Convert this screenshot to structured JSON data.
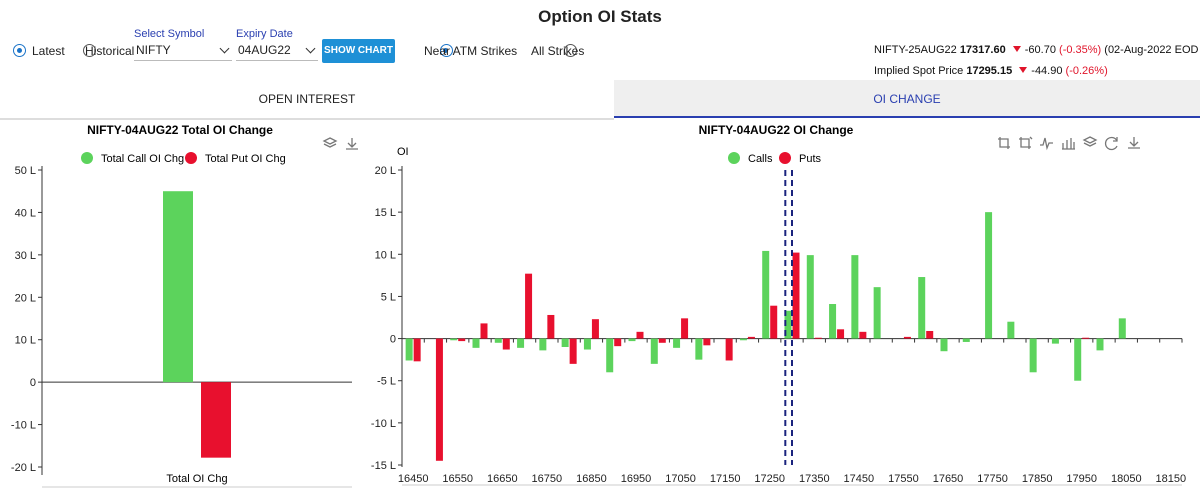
{
  "page_title": "Option OI Stats",
  "controls": {
    "mode_latest": "Latest",
    "mode_historical": "Historical",
    "symbol_label": "Select Symbol",
    "symbol_value": "NIFTY",
    "expiry_label": "Expiry Date",
    "expiry_value": "04AUG22",
    "show_chart": "SHOW CHART",
    "strikes_near": "Near ATM Strikes",
    "strikes_all": "All Strikes"
  },
  "info": {
    "fut_name": "NIFTY-25AUG22",
    "fut_price": "17317.60",
    "fut_change": "-60.70",
    "fut_pct": "(-0.35%)",
    "fut_date": "(02-Aug-2022 EOD )",
    "spot_label": "Implied Spot Price",
    "spot_price": "17295.15",
    "spot_change": "-44.90",
    "spot_pct": "(-0.26%)"
  },
  "tabs": {
    "open_interest": "OPEN INTEREST",
    "oi_change": "OI CHANGE"
  },
  "colors": {
    "calls": "#5cd35c",
    "puts": "#e8102e",
    "accent": "#1e90d6"
  },
  "chart_data": [
    {
      "type": "bar",
      "title": "NIFTY-04AUG22 Total OI Change",
      "categories": [
        "Total OI Chg"
      ],
      "series": [
        {
          "name": "Total Call OI Chg",
          "values": [
            45.0
          ]
        },
        {
          "name": "Total Put OI Chg",
          "values": [
            -17.8
          ]
        }
      ],
      "ylim": [
        -20,
        50
      ],
      "yticks": [
        "50 L",
        "40 L",
        "30 L",
        "20 L",
        "10 L",
        "0",
        "-10 L",
        "-20 L"
      ],
      "legend": "top"
    },
    {
      "type": "bar",
      "title": "NIFTY-04AUG22 OI Change",
      "ylabel": "OI",
      "ylim": [
        -15,
        20
      ],
      "yticks": [
        "20 L",
        "15 L",
        "10 L",
        "5 L",
        "0",
        "-5 L",
        "-10 L",
        "-15 L"
      ],
      "xtick_labels": [
        "16450",
        "16550",
        "16650",
        "16750",
        "16850",
        "16950",
        "17050",
        "17150",
        "17250",
        "17350",
        "17450",
        "17550",
        "17650",
        "17750",
        "17850",
        "17950",
        "18050",
        "18150"
      ],
      "strikes": [
        16450,
        16500,
        16550,
        16600,
        16650,
        16700,
        16750,
        16800,
        16850,
        16900,
        16950,
        17000,
        17050,
        17100,
        17150,
        17200,
        17250,
        17300,
        17350,
        17400,
        17450,
        17500,
        17550,
        17600,
        17650,
        17700,
        17750,
        17800,
        17850,
        17900,
        17950,
        18000,
        18050,
        18100
      ],
      "series": [
        {
          "name": "Calls",
          "values": [
            -2.6,
            0.0,
            -0.2,
            -1.1,
            -0.5,
            -1.1,
            -1.4,
            -1.0,
            -1.3,
            -4.0,
            -0.3,
            -3.0,
            -1.1,
            -2.5,
            0.0,
            -0.2,
            10.4,
            3.3,
            9.9,
            4.1,
            9.9,
            6.1,
            0.0,
            7.3,
            -1.5,
            -0.4,
            15.0,
            2.0,
            -4.0,
            -0.6,
            -5.0,
            -1.4,
            2.4,
            0.0
          ]
        },
        {
          "name": "Puts",
          "values": [
            -2.7,
            -14.5,
            -0.3,
            1.8,
            -1.3,
            7.7,
            2.8,
            -3.0,
            2.3,
            -0.9,
            0.8,
            -0.5,
            2.4,
            -0.8,
            -2.6,
            0.2,
            3.9,
            10.2,
            0.1,
            1.1,
            0.8,
            0.0,
            0.2,
            0.9,
            0.0,
            0.0,
            0.0,
            0.0,
            0.0,
            0.0,
            0.1,
            0.0,
            0.0,
            0.0
          ]
        }
      ],
      "atm_markers": [
        17285,
        17300
      ],
      "legend": "top"
    }
  ]
}
